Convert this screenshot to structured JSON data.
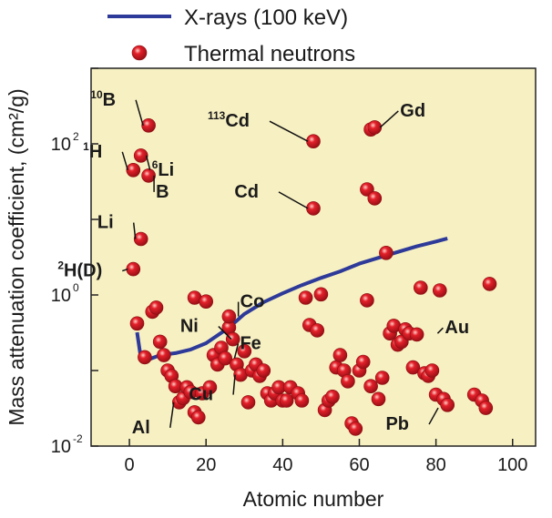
{
  "chart_data": {
    "type": "scatter",
    "xlabel": "Atomic number",
    "ylabel": "Mass attenuation coefficient, (cm²/g)",
    "xlim": [
      -10,
      106
    ],
    "ylim": [
      0.01,
      1000
    ],
    "yscale": "log",
    "xticks": [
      "0",
      "20",
      "40",
      "60",
      "80",
      "100"
    ],
    "yticks": [
      {
        "base": "10",
        "exp": "-2"
      },
      {
        "base": "10",
        "exp": "0"
      },
      {
        "base": "10",
        "exp": "2"
      }
    ],
    "plot_background": "#f7f0c2",
    "legend_position": "top",
    "series": [
      {
        "name": "X-rays (100 keV)",
        "kind": "line",
        "color": "#2e3a99",
        "x": [
          2,
          3,
          4,
          5,
          8,
          12,
          16,
          20,
          26,
          30,
          35,
          40,
          45,
          50,
          55,
          60,
          65,
          70,
          75,
          80,
          83
        ],
        "y": [
          0.32,
          0.145,
          0.13,
          0.14,
          0.16,
          0.17,
          0.19,
          0.23,
          0.37,
          0.56,
          0.8,
          1.05,
          1.35,
          1.68,
          2.05,
          2.6,
          3.1,
          3.7,
          4.4,
          5.1,
          5.6
        ]
      },
      {
        "name": "Thermal neutrons",
        "kind": "scatter",
        "color": "#e3202a",
        "x": [
          1,
          1,
          2,
          3,
          3,
          4,
          5,
          5,
          6,
          7,
          8,
          9,
          10,
          11,
          12,
          13,
          14,
          15,
          16,
          17,
          17,
          18,
          19,
          20,
          21,
          22,
          23,
          24,
          25,
          26,
          26,
          27,
          28,
          29,
          30,
          31,
          32,
          33,
          34,
          35,
          36,
          37,
          38,
          39,
          40,
          41,
          42,
          44,
          45,
          46,
          47,
          48,
          48,
          49,
          50,
          51,
          52,
          53,
          54,
          55,
          56,
          57,
          58,
          59,
          60,
          61,
          62,
          62,
          63,
          63,
          64,
          64,
          65,
          66,
          67,
          68,
          69,
          70,
          71,
          72,
          73,
          74,
          75,
          76,
          77,
          78,
          79,
          80,
          81,
          82,
          83,
          90,
          92,
          93,
          94
        ],
        "y": [
          2.2,
          45,
          0.42,
          70,
          5.5,
          0.15,
          175,
          38,
          0.6,
          0.68,
          0.24,
          0.16,
          0.1,
          0.085,
          0.062,
          0.038,
          0.043,
          0.06,
          0.052,
          0.028,
          0.92,
          0.024,
          0.05,
          0.82,
          0.06,
          0.16,
          0.12,
          0.2,
          0.145,
          0.37,
          0.52,
          0.26,
          0.12,
          0.088,
          0.18,
          0.038,
          0.1,
          0.12,
          0.085,
          0.1,
          0.05,
          0.04,
          0.05,
          0.06,
          0.04,
          0.04,
          0.06,
          0.05,
          0.04,
          0.92,
          0.4,
          14,
          108,
          0.34,
          1.02,
          0.03,
          0.04,
          0.045,
          0.11,
          0.16,
          0.1,
          0.072,
          0.02,
          0.017,
          0.1,
          0.13,
          0.85,
          25,
          0.062,
          155,
          19,
          165,
          0.042,
          0.08,
          3.6,
          0.31,
          0.39,
          0.22,
          0.24,
          0.35,
          0.31,
          0.11,
          0.3,
          1.25,
          0.092,
          0.085,
          0.1,
          0.048,
          1.15,
          0.042,
          0.035,
          0.048,
          0.04,
          0.032,
          1.4
        ]
      }
    ],
    "annotations": [
      {
        "pre": "10",
        "text": "B",
        "x": 5,
        "y": 175
      },
      {
        "pre": "1",
        "text": "H",
        "x": 1,
        "y": 45
      },
      {
        "pre": "6",
        "text": "Li",
        "x": 3,
        "y": 70
      },
      {
        "pre": "",
        "text": "B",
        "x": 5,
        "y": 38
      },
      {
        "pre": "",
        "text": "Li",
        "x": 3,
        "y": 5.5
      },
      {
        "pre": "2",
        "text": "H(D)",
        "x": 1,
        "y": 2.2
      },
      {
        "pre": "113",
        "text": "Cd",
        "x": 48,
        "y": 108
      },
      {
        "pre": "",
        "text": "Gd",
        "x": 64,
        "y": 165
      },
      {
        "pre": "",
        "text": "Cd",
        "x": 48,
        "y": 14
      },
      {
        "pre": "",
        "text": "Co",
        "x": 27,
        "y": 0.52
      },
      {
        "pre": "",
        "text": "Ni",
        "x": 28,
        "y": 0.26
      },
      {
        "pre": "",
        "text": "Fe",
        "x": 26,
        "y": 0.145
      },
      {
        "pre": "",
        "text": "Cu",
        "x": 29,
        "y": 0.088
      },
      {
        "pre": "",
        "text": "Al",
        "x": 13,
        "y": 0.038
      },
      {
        "pre": "",
        "text": "Au",
        "x": 79,
        "y": 0.31
      },
      {
        "pre": "",
        "text": "Pb",
        "x": 82,
        "y": 0.032
      }
    ]
  }
}
